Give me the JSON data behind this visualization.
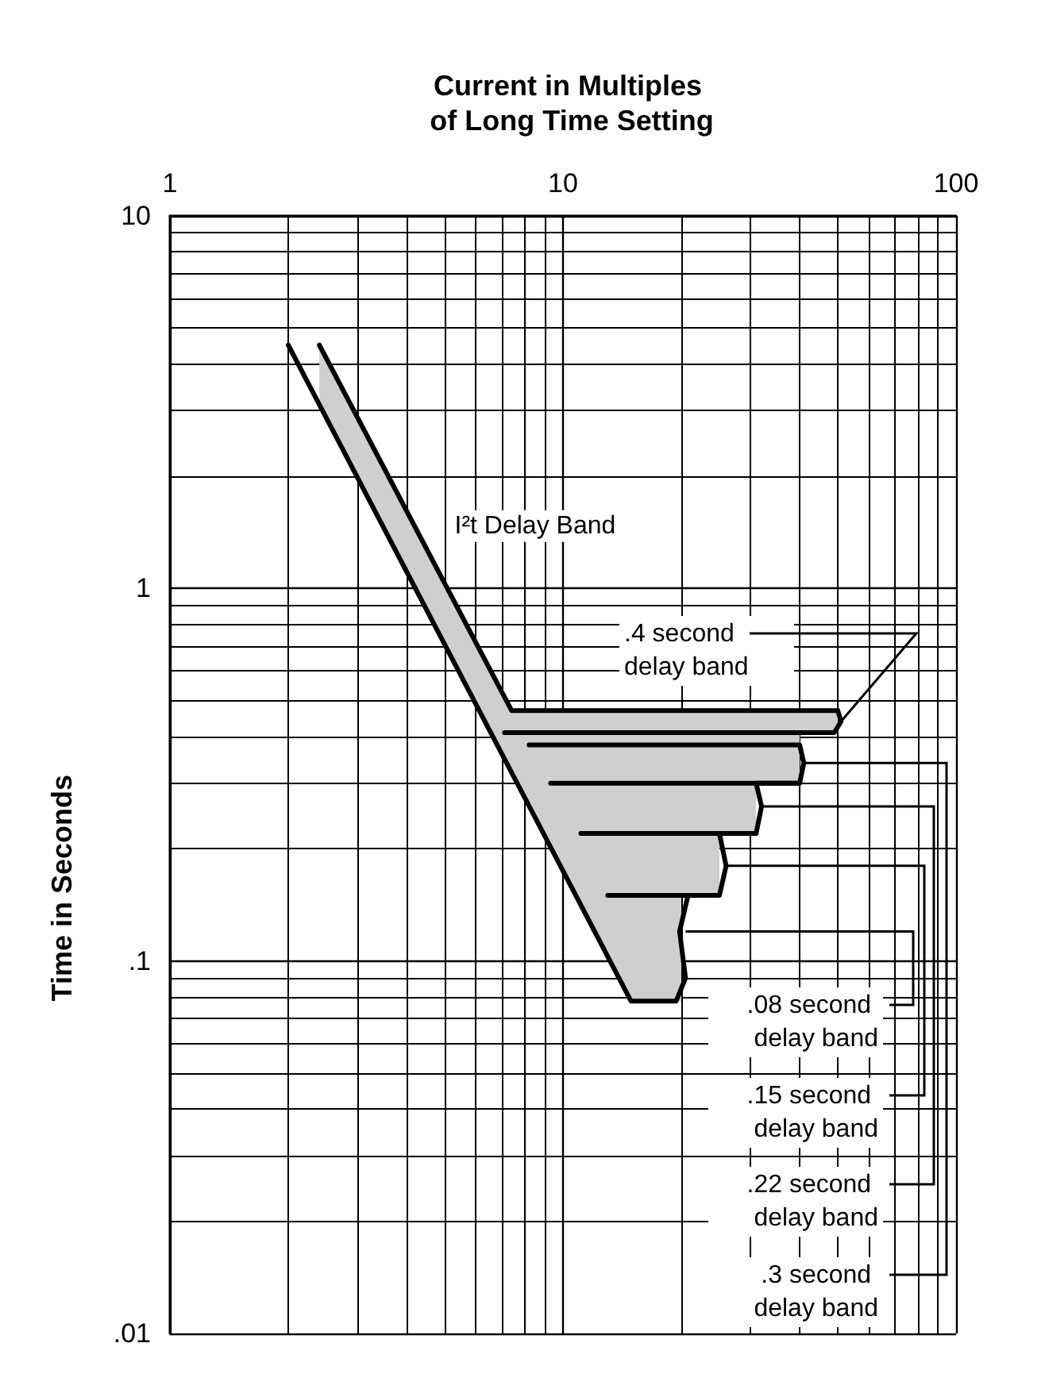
{
  "chart_data": {
    "type": "line",
    "xlabel": "Current in Multiples of Long Time Setting",
    "ylabel": "Time in Seconds",
    "log": "xy",
    "grid": true,
    "marker": "none",
    "line_style": "solid",
    "xlim": [
      1,
      100
    ],
    "xticks": [
      1,
      10,
      100
    ],
    "ylim": [
      0.01,
      10
    ],
    "yticks": [
      {
        "value": 0.01,
        "label": ".01"
      },
      {
        "value": 0.1,
        "label": ".1"
      },
      {
        "value": 1,
        "label": "1"
      },
      {
        "value": 10,
        "label": "10"
      }
    ],
    "series": [
      {
        "color": "#000000",
        "x": [
          2.4,
          7.4,
          14.9,
          19.4,
          20,
          20,
          25,
          25,
          31,
          31,
          40,
          40,
          50
        ],
        "values": [
          4.5,
          0.47,
          0.47,
          0.47,
          0.47,
          0.47,
          0.47,
          0.47,
          0.47,
          0.47,
          0.47,
          0.47,
          0.47
        ],
        "lower": [
          3.1,
          0.32,
          0.078,
          0.078,
          0.078,
          0.15,
          0.15,
          0.22,
          0.22,
          0.3,
          0.3,
          0.41,
          0.41
        ],
        "upper": [
          4.5,
          0.47,
          0.47,
          0.47,
          0.47,
          0.47,
          0.47,
          0.47,
          0.47,
          0.47,
          0.47,
          0.47,
          0.47
        ]
      },
      {
        "color": "#000000",
        "x": [
          50,
          51,
          49,
          7.1
        ],
        "values": [
          0.47,
          0.44,
          0.41,
          0.41
        ]
      },
      {
        "color": "#000000",
        "x": [
          2.0,
          14.9,
          19.4,
          20.5,
          19.8,
          20.8
        ],
        "values": [
          4.5,
          0.078,
          0.078,
          0.09,
          0.12,
          0.15
        ]
      },
      {
        "color": "#000000",
        "x": [
          8.2,
          40,
          41,
          40,
          9.3
        ],
        "values": [
          0.38,
          0.38,
          0.34,
          0.3,
          0.3
        ]
      },
      {
        "color": "#000000",
        "x": [
          40,
          31,
          32,
          31,
          11.1
        ],
        "values": [
          0.3,
          0.3,
          0.26,
          0.22,
          0.22
        ]
      },
      {
        "color": "#000000",
        "x": [
          31,
          25,
          26,
          25,
          13
        ],
        "values": [
          0.22,
          0.22,
          0.18,
          0.15,
          0.15
        ]
      }
    ],
    "annotations": [
      {
        "text": "I²t Delay Band",
        "x": 4.2,
        "y": 1.47
      },
      {
        "text": ".4 second delay band",
        "x": 51,
        "y": 0.44
      },
      {
        "text": ".08 second delay band",
        "x": 20.5,
        "y": 0.12
      },
      {
        "text": ".15 second delay band",
        "x": 26,
        "y": 0.18
      },
      {
        "text": ".22 second delay band",
        "x": 32,
        "y": 0.26
      },
      {
        "text": ".3 second delay band",
        "x": 41,
        "y": 0.34
      }
    ]
  }
}
